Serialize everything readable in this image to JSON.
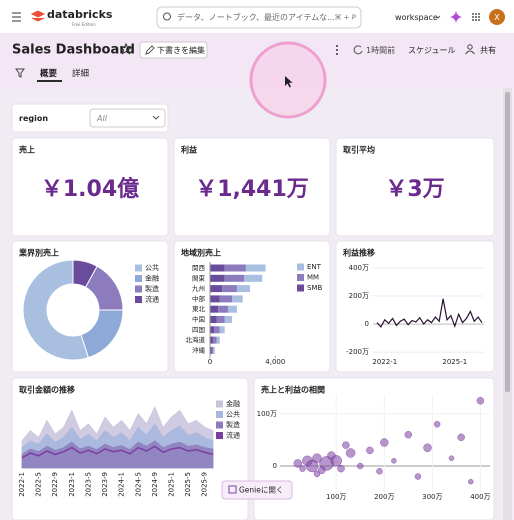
{
  "header": {
    "logo": "databricks",
    "edition": "Free Edition",
    "search_placeholder": "データ、ノートブック、最近のアイテムな...",
    "shortcut": "⌘ + P",
    "workspace": "workspace",
    "avatar": "X"
  },
  "toolbar": {
    "title": "Sales Dashboard",
    "edit_draft": "下書きを編集",
    "updated": "1時間前",
    "schedule": "スケジュール",
    "share": "共有"
  },
  "tabs": [
    "概要",
    "詳細"
  ],
  "filter": {
    "label": "region",
    "value": "All"
  },
  "kpis": [
    {
      "title": "売上",
      "value": "￥1.04億"
    },
    {
      "title": "利益",
      "value": "￥1,441万"
    },
    {
      "title": "取引平均",
      "value": "￥3万"
    }
  ],
  "genie_button": "Genieに開く",
  "chart_data": [
    {
      "type": "pie",
      "donut": true,
      "title": "業界別売上",
      "categories": [
        "公共",
        "金融",
        "製造",
        "流通"
      ],
      "values": [
        55,
        20,
        17,
        8
      ],
      "colors": [
        "#a9bfe0",
        "#8ea8d8",
        "#8c7bbd",
        "#6a4c9c"
      ]
    },
    {
      "type": "bar",
      "orientation": "horizontal",
      "stacked": true,
      "title": "地域別売上",
      "categories": [
        "関西",
        "関東",
        "九州",
        "中部",
        "東北",
        "中国",
        "四国",
        "北海道",
        "沖縄"
      ],
      "series": [
        {
          "name": "ENT",
          "color": "#a9bfe0",
          "values": [
            1200,
            1100,
            800,
            650,
            550,
            450,
            300,
            200,
            100
          ]
        },
        {
          "name": "MM",
          "color": "#8c7bbd",
          "values": [
            1300,
            1200,
            900,
            750,
            600,
            500,
            350,
            220,
            110
          ]
        },
        {
          "name": "SMB",
          "color": "#6a4c9c",
          "values": [
            900,
            900,
            750,
            600,
            500,
            400,
            250,
            180,
            90
          ]
        }
      ],
      "xlim": [
        0,
        4900
      ],
      "xticks": [
        0,
        {
          "value": 4000,
          "label": "4,000"
        }
      ]
    },
    {
      "type": "line",
      "title": "利益推移",
      "color": "#2b1033",
      "grid": true,
      "categories": [
        null,
        null,
        "2022-1",
        null,
        null,
        null,
        null,
        null,
        null,
        null,
        null,
        null,
        null,
        null,
        null,
        null,
        null,
        null,
        null,
        null,
        "2025-1",
        null,
        null,
        null,
        null,
        null,
        null,
        null
      ],
      "values": [
        10,
        -20,
        30,
        5,
        40,
        -10,
        20,
        35,
        -5,
        25,
        15,
        45,
        0,
        30,
        10,
        50,
        20,
        180,
        30,
        60,
        -15,
        70,
        10,
        40,
        90,
        20,
        50,
        10
      ],
      "ylim": [
        -220,
        420
      ],
      "yticks": [
        {
          "value": -200,
          "label": "-200万"
        },
        0,
        {
          "value": 200,
          "label": "200万"
        },
        {
          "value": 400,
          "label": "400万"
        }
      ]
    },
    {
      "type": "area",
      "title": "取引金額の推移",
      "categories": [
        "2022-1",
        null,
        "2022-5",
        null,
        "2022-9",
        null,
        "2023-1",
        null,
        "2023-5",
        null,
        "2023-9",
        null,
        "2024-1",
        null,
        "2024-5",
        null,
        "2024-9",
        null,
        "2025-1",
        null,
        "2025-5",
        null,
        "2025-9",
        null
      ],
      "series": [
        {
          "name": "金融",
          "color": "#c9c2dc",
          "values": [
            40,
            55,
            45,
            70,
            50,
            60,
            85,
            55,
            65,
            50,
            75,
            60,
            70,
            55,
            80,
            65,
            90,
            60,
            75,
            85,
            65,
            70,
            60,
            55
          ]
        },
        {
          "name": "公共",
          "color": "#a6b6dd",
          "values": [
            30,
            40,
            35,
            50,
            38,
            45,
            60,
            42,
            50,
            40,
            55,
            45,
            52,
            40,
            60,
            48,
            65,
            45,
            55,
            62,
            48,
            52,
            45,
            40
          ]
        },
        {
          "name": "製造",
          "color": "#8c7bbd",
          "values": [
            20,
            28,
            24,
            32,
            26,
            30,
            38,
            28,
            32,
            27,
            35,
            30,
            33,
            27,
            38,
            32,
            40,
            30,
            35,
            38,
            32,
            34,
            30,
            28
          ]
        },
        {
          "name": "流通",
          "color": "#7b3fa0",
          "values": [
            15,
            22,
            18,
            25,
            20,
            24,
            30,
            22,
            26,
            21,
            28,
            24,
            26,
            21,
            30,
            25,
            32,
            23,
            28,
            30,
            25,
            27,
            23,
            20
          ]
        }
      ],
      "ylim": [
        0,
        100
      ]
    },
    {
      "type": "scatter",
      "title": "売上と利益の相関",
      "color": "#7b3fa0",
      "x": [
        20,
        30,
        40,
        50,
        60,
        70,
        80,
        90,
        100,
        110,
        130,
        150,
        170,
        190,
        200,
        220,
        250,
        270,
        290,
        310,
        340,
        360,
        400,
        380,
        60,
        120
      ],
      "values": [
        5,
        -5,
        10,
        0,
        15,
        -8,
        5,
        20,
        10,
        -5,
        25,
        0,
        30,
        -10,
        45,
        10,
        60,
        -20,
        35,
        80,
        15,
        55,
        125,
        -30,
        -15,
        40
      ],
      "sizes": [
        6,
        4,
        8,
        10,
        7,
        5,
        12,
        6,
        9,
        5,
        7,
        4,
        5,
        4,
        6,
        3,
        5,
        4,
        6,
        4,
        3,
        5,
        5,
        3,
        4,
        5
      ],
      "xlim": [
        -17,
        420
      ],
      "xticks": [
        {
          "value": 100,
          "label": "100万"
        },
        {
          "value": 200,
          "label": "200万"
        },
        {
          "value": 300,
          "label": "300万"
        },
        {
          "value": 400,
          "label": "400万"
        }
      ],
      "ylim": [
        -65,
        136
      ],
      "yticks": [
        0,
        {
          "value": 100,
          "label": "100万"
        }
      ],
      "grid": true
    }
  ]
}
